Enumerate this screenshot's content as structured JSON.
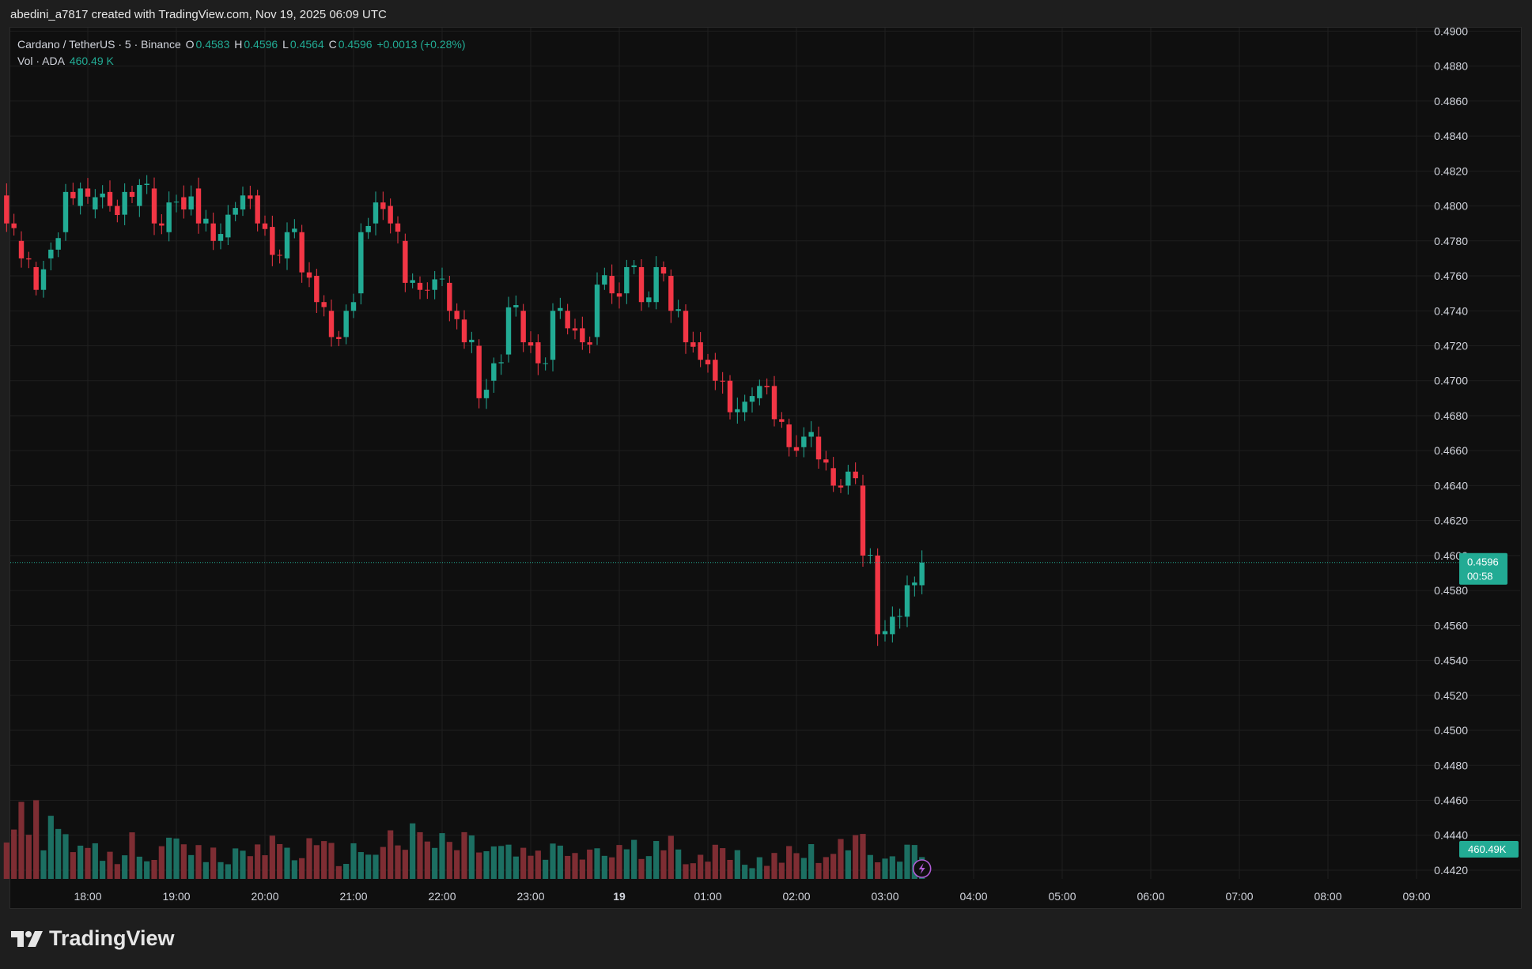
{
  "header": {
    "credit": "abedini_a7817 created with TradingView.com, Nov 19, 2025 06:09 UTC"
  },
  "legend": {
    "symbol": "Cardano / TetherUS · 5 · Binance",
    "o_label": "O",
    "o_value": "0.4583",
    "h_label": "H",
    "h_value": "0.4596",
    "l_label": "L",
    "l_value": "0.4564",
    "c_label": "C",
    "c_value": "0.4596",
    "change": "+0.0013 (+0.28%)",
    "vol_label": "Vol · ADA",
    "vol_value": "460.49 K"
  },
  "footer": {
    "brand": "TradingView"
  },
  "colors": {
    "up": "#22ab94",
    "down": "#f23645",
    "vol_up": "#1c6f62",
    "vol_down": "#7e2d33",
    "grid": "#1f1f1f",
    "axis_text": "#d1d4dc"
  },
  "chart_data": {
    "type": "candlestick",
    "symbol": "ADA/USDT",
    "interval": "5",
    "ylim": [
      0.4415,
      0.4902
    ],
    "yticks": [
      "0.4900",
      "0.4880",
      "0.4860",
      "0.4840",
      "0.4820",
      "0.4800",
      "0.4780",
      "0.4760",
      "0.4740",
      "0.4720",
      "0.4700",
      "0.4680",
      "0.4660",
      "0.4640",
      "0.4620",
      "0.4600",
      "0.4580",
      "0.4560",
      "0.4540",
      "0.4520",
      "0.4500",
      "0.4480",
      "0.4460",
      "0.4440",
      "0.4420"
    ],
    "xticks": [
      "18:00",
      "19:00",
      "20:00",
      "21:00",
      "22:00",
      "23:00",
      "19",
      "01:00",
      "02:00",
      "03:00",
      "04:00",
      "05:00",
      "06:00",
      "07:00",
      "08:00",
      "09:00"
    ],
    "last_price": "0.4596",
    "countdown": "00:58",
    "last_volume": "460.49K",
    "anchors": [
      [
        0.4806,
        0.479
      ],
      [
        0.478,
        0.477
      ],
      [
        0.4765,
        0.4752
      ],
      [
        0.477,
        0.4775
      ],
      [
        0.4785,
        0.4808
      ],
      [
        0.48,
        0.481
      ],
      [
        0.4798,
        0.4805
      ],
      [
        0.4808,
        0.48
      ],
      [
        0.4795,
        0.4808
      ],
      [
        0.48,
        0.4812
      ],
      [
        0.481,
        0.479
      ],
      [
        0.4785,
        0.4802
      ],
      [
        0.4805,
        0.4798
      ],
      [
        0.481,
        0.479
      ],
      [
        0.479,
        0.478
      ],
      [
        0.4782,
        0.4795
      ],
      [
        0.4798,
        0.4806
      ],
      [
        0.4806,
        0.479
      ],
      [
        0.4788,
        0.4772
      ],
      [
        0.477,
        0.4785
      ],
      [
        0.4785,
        0.4762
      ],
      [
        0.476,
        0.4745
      ],
      [
        0.474,
        0.4725
      ],
      [
        0.4725,
        0.474
      ],
      [
        0.475,
        0.4785
      ],
      [
        0.479,
        0.4802
      ],
      [
        0.48,
        0.479
      ],
      [
        0.478,
        0.4756
      ],
      [
        0.4756,
        0.4752
      ],
      [
        0.4752,
        0.4758
      ],
      [
        0.4756,
        0.474
      ],
      [
        0.4735,
        0.4722
      ],
      [
        0.472,
        0.469
      ],
      [
        0.47,
        0.471
      ],
      [
        0.4715,
        0.4742
      ],
      [
        0.474,
        0.4722
      ],
      [
        0.4722,
        0.471
      ],
      [
        0.4712,
        0.474
      ],
      [
        0.474,
        0.473
      ],
      [
        0.473,
        0.4722
      ],
      [
        0.4725,
        0.4755
      ],
      [
        0.476,
        0.475
      ],
      [
        0.475,
        0.4765
      ],
      [
        0.4765,
        0.4745
      ],
      [
        0.4745,
        0.4765
      ],
      [
        0.476,
        0.474
      ],
      [
        0.474,
        0.4722
      ],
      [
        0.4722,
        0.4712
      ],
      [
        0.4712,
        0.47
      ],
      [
        0.47,
        0.4682
      ],
      [
        0.4682,
        0.4688
      ],
      [
        0.469,
        0.4697
      ],
      [
        0.4697,
        0.4678
      ],
      [
        0.4675,
        0.4662
      ],
      [
        0.4662,
        0.4668
      ],
      [
        0.4668,
        0.4655
      ],
      [
        0.465,
        0.464
      ],
      [
        0.464,
        0.4648
      ],
      [
        0.464,
        0.46
      ],
      [
        0.46,
        0.4555
      ],
      [
        0.4555,
        0.4565
      ],
      [
        0.4565,
        0.4583
      ],
      [
        0.4583,
        0.4596
      ]
    ],
    "volume_shape": [
      [
        0,
        0.18
      ],
      [
        3,
        0.4
      ],
      [
        7,
        0.18
      ],
      [
        14,
        0.1
      ],
      [
        17,
        0.17
      ],
      [
        30,
        0.1
      ],
      [
        35,
        0.18
      ],
      [
        46,
        0.12
      ],
      [
        52,
        0.2
      ],
      [
        64,
        0.18
      ],
      [
        70,
        0.12
      ],
      [
        80,
        0.14
      ],
      [
        93,
        0.15
      ],
      [
        100,
        0.1
      ],
      [
        112,
        0.17
      ],
      [
        124,
        0.12
      ],
      [
        130,
        0.2
      ],
      [
        140,
        0.18
      ],
      [
        148,
        0.22
      ],
      [
        152,
        0.45
      ],
      [
        155,
        0.52
      ],
      [
        158,
        0.25
      ],
      [
        160,
        0.02
      ]
    ]
  }
}
